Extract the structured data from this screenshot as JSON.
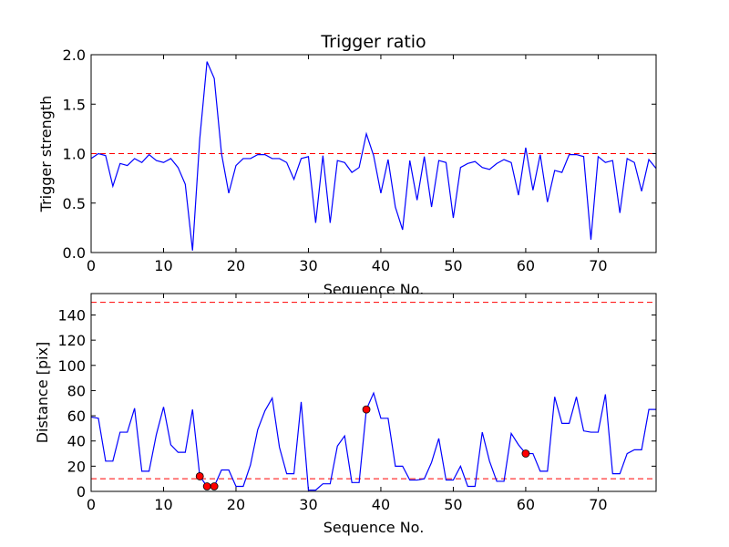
{
  "chart_data": [
    {
      "type": "line",
      "title": "Trigger ratio",
      "xlabel": "Sequence No.",
      "ylabel": "Trigger strength",
      "xlim": [
        0,
        78
      ],
      "ylim": [
        0,
        2.0
      ],
      "xticks": [
        0,
        10,
        20,
        30,
        40,
        50,
        60,
        70
      ],
      "yticks": [
        0.0,
        0.5,
        1.0,
        1.5,
        2.0
      ],
      "ytick_labels": [
        "0.0",
        "0.5",
        "1.0",
        "1.5",
        "2.0"
      ],
      "reference_lines": [
        {
          "y": 1.0,
          "color": "#ff0000",
          "style": "dashed"
        }
      ],
      "series": [
        {
          "name": "trigger-strength",
          "color": "#0000ff",
          "values": [
            0.95,
            1.0,
            0.98,
            0.67,
            0.9,
            0.88,
            0.95,
            0.91,
            0.99,
            0.93,
            0.91,
            0.95,
            0.86,
            0.69,
            0.02,
            1.15,
            1.93,
            1.76,
            1.0,
            0.6,
            0.88,
            0.95,
            0.95,
            0.99,
            0.99,
            0.95,
            0.95,
            0.91,
            0.74,
            0.95,
            0.97,
            0.3,
            0.98,
            0.3,
            0.93,
            0.91,
            0.81,
            0.86,
            1.2,
            0.98,
            0.6,
            0.94,
            0.46,
            0.23,
            0.93,
            0.53,
            0.97,
            0.46,
            0.93,
            0.91,
            0.35,
            0.86,
            0.9,
            0.92,
            0.86,
            0.84,
            0.9,
            0.94,
            0.91,
            0.58,
            1.06,
            0.63,
            0.99,
            0.51,
            0.83,
            0.81,
            0.99,
            0.99,
            0.97,
            0.13,
            0.97,
            0.91,
            0.93,
            0.4,
            0.95,
            0.91,
            0.62,
            0.94,
            0.85
          ]
        }
      ]
    },
    {
      "type": "line",
      "title": "",
      "xlabel": "Sequence No.",
      "ylabel": "Distance [pix]",
      "xlim": [
        0,
        78
      ],
      "ylim": [
        0,
        157
      ],
      "xticks": [
        0,
        10,
        20,
        30,
        40,
        50,
        60,
        70
      ],
      "yticks": [
        0,
        20,
        40,
        60,
        80,
        100,
        120,
        140
      ],
      "ytick_labels": [
        "0",
        "20",
        "40",
        "60",
        "80",
        "100",
        "120",
        "140"
      ],
      "reference_lines": [
        {
          "y": 150,
          "color": "#ff0000",
          "style": "dashed"
        },
        {
          "y": 10,
          "color": "#ff0000",
          "style": "dashed"
        }
      ],
      "series": [
        {
          "name": "distance",
          "color": "#0000ff",
          "values": [
            59,
            58,
            24,
            24,
            47,
            47,
            66,
            16,
            16,
            45,
            67,
            37,
            31,
            31,
            65,
            12,
            4,
            4,
            17,
            17,
            4,
            4,
            21,
            49,
            64,
            74,
            35,
            14,
            14,
            71,
            1,
            1,
            6,
            6,
            36,
            44,
            7,
            7,
            65,
            78,
            58,
            58,
            20,
            20,
            9,
            9,
            10,
            23,
            42,
            9,
            9,
            20,
            4,
            4,
            47,
            24,
            8,
            8,
            46,
            37,
            30,
            30,
            16,
            16,
            75,
            54,
            54,
            75,
            48,
            47,
            47,
            77,
            14,
            14,
            30,
            33,
            33,
            65,
            65
          ]
        }
      ],
      "markers": {
        "color": "#ff0000",
        "points": [
          {
            "x": 15,
            "y": 12
          },
          {
            "x": 16,
            "y": 4
          },
          {
            "x": 17,
            "y": 4
          },
          {
            "x": 38,
            "y": 65
          },
          {
            "x": 60,
            "y": 30
          }
        ]
      }
    }
  ]
}
